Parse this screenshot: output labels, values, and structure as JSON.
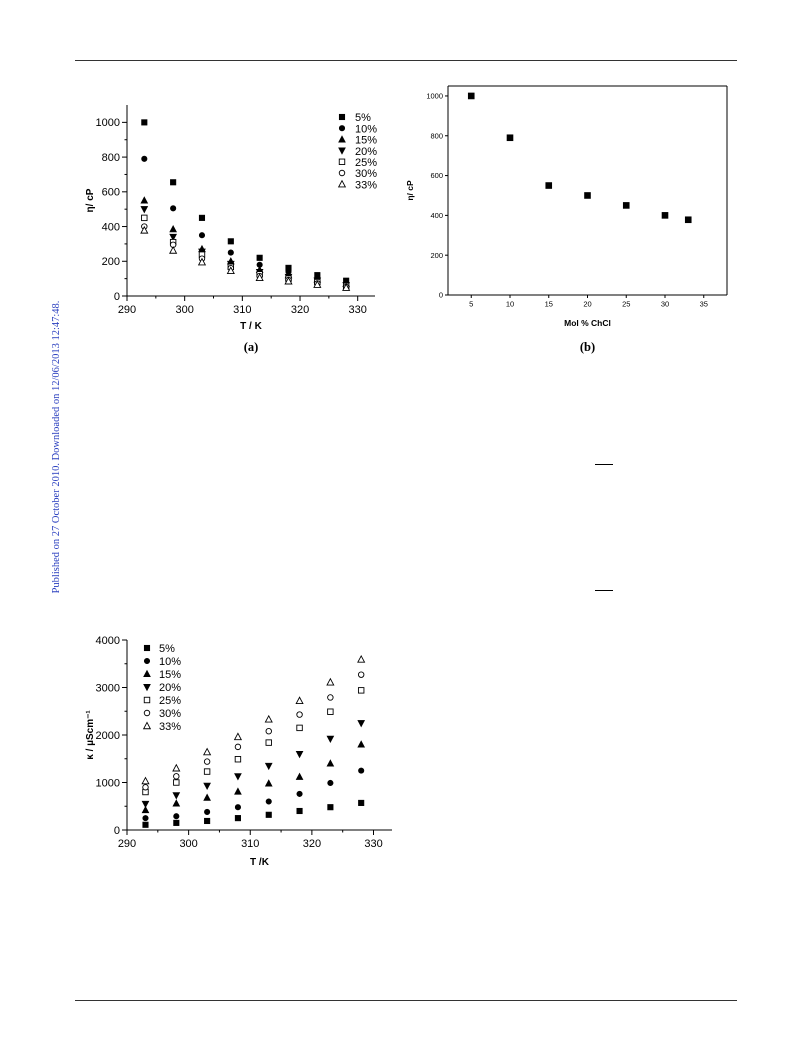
{
  "page": {
    "side_note": "Published on 27 October 2010. Downloaded on 12/06/2013 12:47:48."
  },
  "chart_data": [
    {
      "id": "a",
      "type": "scatter",
      "caption": "(a)",
      "xlabel": "T / K",
      "ylabel": "η/ cP",
      "xlim": [
        290,
        333
      ],
      "ylim": [
        0,
        1100
      ],
      "xticks": [
        290,
        300,
        310,
        320,
        330
      ],
      "yticks": [
        0,
        200,
        400,
        600,
        800,
        1000
      ],
      "legend_position": "top-right",
      "x": [
        293,
        298,
        303,
        308,
        313,
        318,
        323,
        328
      ],
      "series": [
        {
          "name": "5%",
          "marker": "square-filled",
          "values": [
            1000,
            655,
            450,
            315,
            220,
            162,
            120,
            88
          ]
        },
        {
          "name": "10%",
          "marker": "circle-filled",
          "values": [
            790,
            505,
            350,
            250,
            180,
            140,
            105,
            75
          ]
        },
        {
          "name": "15%",
          "marker": "triangle-up-filled",
          "values": [
            550,
            385,
            270,
            200,
            150,
            120,
            95,
            70
          ]
        },
        {
          "name": "20%",
          "marker": "triangle-down-filled",
          "values": [
            500,
            340,
            255,
            185,
            138,
            110,
            88,
            62
          ]
        },
        {
          "name": "25%",
          "marker": "square-open",
          "values": [
            450,
            310,
            238,
            168,
            125,
            100,
            80,
            58
          ]
        },
        {
          "name": "30%",
          "marker": "circle-open",
          "values": [
            400,
            295,
            215,
            160,
            115,
            92,
            72,
            52
          ]
        },
        {
          "name": "33%",
          "marker": "triangle-up-open",
          "values": [
            378,
            262,
            195,
            145,
            105,
            85,
            65,
            48
          ]
        }
      ]
    },
    {
      "id": "b",
      "type": "scatter",
      "caption": "(b)",
      "xlabel": "Mol % ChCl",
      "ylabel": "η/ cP",
      "xlim": [
        2,
        38
      ],
      "ylim": [
        0,
        1050
      ],
      "xticks": [
        5,
        10,
        15,
        20,
        25,
        30,
        35
      ],
      "yticks": [
        0,
        200,
        400,
        600,
        800,
        1000
      ],
      "series": [
        {
          "name": "",
          "marker": "square-filled",
          "x": [
            5,
            10,
            15,
            20,
            25,
            30,
            33
          ],
          "values": [
            1000,
            790,
            550,
            500,
            450,
            400,
            378
          ]
        }
      ]
    },
    {
      "id": "c",
      "type": "scatter",
      "caption": "",
      "xlabel": "T /K",
      "ylabel": "κ / µScm⁻¹",
      "xlim": [
        290,
        333
      ],
      "ylim": [
        0,
        4000
      ],
      "xticks": [
        290,
        300,
        310,
        320,
        330
      ],
      "yticks": [
        0,
        1000,
        2000,
        3000,
        4000
      ],
      "legend_position": "top-left",
      "x": [
        293,
        298,
        303,
        308,
        313,
        318,
        323,
        328
      ],
      "series": [
        {
          "name": "5%",
          "marker": "square-filled",
          "values": [
            110,
            150,
            190,
            250,
            320,
            400,
            480,
            570
          ]
        },
        {
          "name": "10%",
          "marker": "circle-filled",
          "values": [
            250,
            290,
            380,
            480,
            600,
            760,
            990,
            1250
          ]
        },
        {
          "name": "15%",
          "marker": "triangle-up-filled",
          "values": [
            420,
            560,
            680,
            810,
            980,
            1120,
            1400,
            1800
          ]
        },
        {
          "name": "20%",
          "marker": "triangle-down-filled",
          "values": [
            550,
            730,
            930,
            1130,
            1350,
            1600,
            1920,
            2250
          ]
        },
        {
          "name": "25%",
          "marker": "square-open",
          "values": [
            800,
            1000,
            1230,
            1490,
            1840,
            2150,
            2490,
            2940
          ]
        },
        {
          "name": "30%",
          "marker": "circle-open",
          "values": [
            900,
            1130,
            1440,
            1750,
            2080,
            2430,
            2790,
            3270
          ]
        },
        {
          "name": "33%",
          "marker": "triangle-up-open",
          "values": [
            1030,
            1300,
            1640,
            1960,
            2330,
            2720,
            3110,
            3590
          ]
        }
      ]
    }
  ]
}
